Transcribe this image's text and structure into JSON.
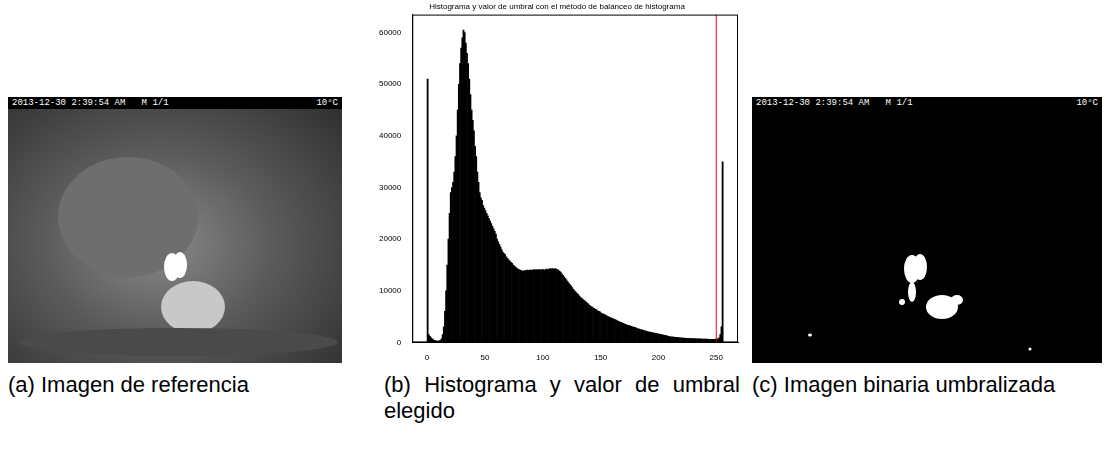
{
  "chart_data": {
    "type": "histogram",
    "title": "Histograma y valor de umbral con el método de balanceo de histograma",
    "bins": [
      0,
      1,
      2,
      3,
      4,
      5,
      6,
      7,
      8,
      9,
      10,
      11,
      12,
      13,
      14,
      15,
      16,
      17,
      18,
      19,
      20,
      21,
      22,
      23,
      24,
      25,
      26,
      27,
      28,
      29,
      30,
      31,
      32,
      33,
      34,
      35,
      36,
      37,
      38,
      39,
      40,
      41,
      42,
      43,
      44,
      45,
      46,
      47,
      48,
      49,
      50,
      51,
      52,
      53,
      54,
      55,
      56,
      57,
      58,
      59,
      60,
      61,
      62,
      63,
      64,
      65,
      66,
      67,
      68,
      69,
      70,
      71,
      72,
      73,
      74,
      75,
      76,
      77,
      78,
      79,
      80,
      81,
      82,
      83,
      84,
      85,
      86,
      87,
      88,
      89,
      90,
      91,
      92,
      93,
      94,
      95,
      96,
      97,
      98,
      99,
      100,
      101,
      102,
      103,
      104,
      105,
      106,
      107,
      108,
      109,
      110,
      111,
      112,
      113,
      114,
      115,
      116,
      117,
      118,
      119,
      120,
      121,
      122,
      123,
      124,
      125,
      126,
      127,
      128,
      129,
      130,
      131,
      132,
      133,
      134,
      135,
      136,
      137,
      138,
      139,
      140,
      141,
      142,
      143,
      144,
      145,
      146,
      147,
      148,
      149,
      150,
      151,
      152,
      153,
      154,
      155,
      156,
      157,
      158,
      159,
      160,
      161,
      162,
      163,
      164,
      165,
      166,
      167,
      168,
      169,
      170,
      171,
      172,
      173,
      174,
      175,
      176,
      177,
      178,
      179,
      180,
      181,
      182,
      183,
      184,
      185,
      186,
      187,
      188,
      189,
      190,
      191,
      192,
      193,
      194,
      195,
      196,
      197,
      198,
      199,
      200,
      201,
      202,
      203,
      204,
      205,
      206,
      207,
      208,
      209,
      210,
      211,
      212,
      213,
      214,
      215,
      216,
      217,
      218,
      219,
      220,
      221,
      222,
      223,
      224,
      225,
      226,
      227,
      228,
      229,
      230,
      231,
      232,
      233,
      234,
      235,
      236,
      237,
      238,
      239,
      240,
      241,
      242,
      243,
      244,
      245,
      246,
      247,
      248,
      249,
      250,
      251,
      252,
      253,
      254,
      255,
      256
    ],
    "values": [
      51000,
      1500,
      1200,
      900,
      700,
      500,
      400,
      300,
      250,
      250,
      300,
      400,
      700,
      1500,
      3000,
      6000,
      10000,
      15000,
      20000,
      25000,
      29000,
      30000,
      31000,
      33000,
      36000,
      40000,
      45000,
      50000,
      54000,
      57000,
      59000,
      60500,
      60000,
      58000,
      56000,
      54000,
      51000,
      48000,
      45000,
      43000,
      41000,
      38000,
      36000,
      33000,
      31000,
      29000,
      28000,
      27500,
      26500,
      26000,
      25500,
      25000,
      24500,
      24000,
      23500,
      23000,
      22500,
      22000,
      21500,
      21000,
      20000,
      19500,
      19000,
      18500,
      18000,
      17500,
      17200,
      17000,
      16600,
      16300,
      16000,
      15800,
      15500,
      15300,
      15000,
      14800,
      14600,
      14400,
      14200,
      14100,
      14000,
      13900,
      13800,
      13800,
      13900,
      13900,
      14000,
      13900,
      14000,
      14000,
      14000,
      14000,
      14100,
      14000,
      14100,
      14000,
      14100,
      14100,
      14000,
      14100,
      14100,
      14000,
      14100,
      14200,
      14100,
      14200,
      14300,
      14200,
      14300,
      14200,
      14300,
      14200,
      14100,
      14000,
      13800,
      13600,
      13300,
      13000,
      12700,
      12400,
      12100,
      11800,
      11500,
      11200,
      10900,
      10600,
      10300,
      10000,
      9800,
      9500,
      9300,
      9000,
      8800,
      8600,
      8400,
      8200,
      8000,
      7800,
      7600,
      7400,
      7200,
      7000,
      6900,
      6700,
      6600,
      6400,
      6300,
      6100,
      6000,
      5900,
      5700,
      5600,
      5500,
      5400,
      5300,
      5100,
      5000,
      4900,
      4800,
      4700,
      4600,
      4500,
      4400,
      4300,
      4200,
      4100,
      4000,
      3900,
      3800,
      3700,
      3600,
      3500,
      3400,
      3300,
      3250,
      3200,
      3100,
      3000,
      2950,
      2900,
      2800,
      2700,
      2650,
      2600,
      2500,
      2450,
      2400,
      2300,
      2250,
      2200,
      2100,
      2050,
      2000,
      1950,
      1900,
      1850,
      1800,
      1750,
      1700,
      1650,
      1600,
      1550,
      1500,
      1450,
      1400,
      1350,
      1300,
      1250,
      1200,
      1150,
      1100,
      1080,
      1050,
      1020,
      1000,
      980,
      950,
      930,
      900,
      880,
      860,
      840,
      820,
      800,
      790,
      780,
      770,
      760,
      750,
      740,
      730,
      720,
      710,
      700,
      690,
      680,
      670,
      660,
      650,
      640,
      630,
      620,
      620,
      610,
      610,
      600,
      600,
      600,
      610,
      620,
      650,
      700,
      900,
      1500,
      3000,
      35000
    ],
    "color": "#000000",
    "xlim": [
      -12.8,
      268.8
    ],
    "xticks": [
      0,
      50,
      100,
      150,
      200,
      250
    ],
    "ylim": [
      0,
      63500
    ],
    "yticks": [
      0,
      10000,
      20000,
      30000,
      40000,
      50000,
      60000
    ],
    "grid": false,
    "annotations": [
      {
        "x": 250,
        "color": "#ff0000"
      }
    ]
  },
  "panels": [
    {
      "caption": "(a) Imagen de referencia",
      "stamp": [
        "2013-12-30 2:39:54 AM   M 1/1",
        "10°C"
      ]
    },
    {
      "caption": "(b) Histograma y valor de umbral elegido"
    },
    {
      "caption": "(c) Imagen binaria umbralizada",
      "stamp": [
        "2013-12-30 2:39:54 AM   M 1/1",
        "10°C"
      ]
    }
  ]
}
